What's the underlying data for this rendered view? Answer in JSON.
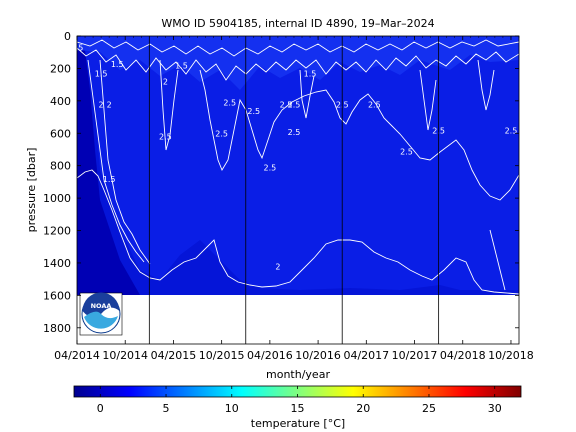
{
  "chart_data": {
    "type": "heatmap",
    "title": "WMO ID 5904185, internal ID 4890, 19–Mar–2024",
    "xlabel": "month/year",
    "ylabel": "pressure [dbar]",
    "colorbar_label": "temperature [°C]",
    "x_tick_labels": [
      "04/2014",
      "10/2014",
      "04/2015",
      "10/2015",
      "04/2016",
      "10/2016",
      "04/2017",
      "10/2017",
      "04/2018",
      "10/2018"
    ],
    "x_range": [
      "2014-04",
      "2018-11"
    ],
    "y_ticks": [
      0,
      200,
      400,
      600,
      800,
      1000,
      1200,
      1400,
      1600,
      1800
    ],
    "y_range": [
      0,
      1900
    ],
    "y_reversed": true,
    "colorbar_ticks": [
      0,
      5,
      10,
      15,
      20,
      25,
      30
    ],
    "colorbar_range": [
      -2,
      32
    ],
    "colormap": "jet",
    "grid": false,
    "data_max_pressure": 1580,
    "year_markers": [
      "2015-01",
      "2016-01",
      "2017-01",
      "2018-01"
    ],
    "contour_labels": [
      {
        "value": "1.5",
        "x": "2014-07",
        "y": 250
      },
      {
        "value": "2",
        "x": "2014-07",
        "y": 440
      },
      {
        "value": "2",
        "x": "2014-08",
        "y": 440
      },
      {
        "value": "1.5",
        "x": "2014-08",
        "y": 900
      },
      {
        "value": "1.5",
        "x": "2014-09",
        "y": 190
      },
      {
        "value": "2.5",
        "x": "2014-04",
        "y": 90
      },
      {
        "value": "2",
        "x": "2015-03",
        "y": 300
      },
      {
        "value": "1.5",
        "x": "2015-05",
        "y": 200
      },
      {
        "value": "2.5",
        "x": "2015-03",
        "y": 640
      },
      {
        "value": "2.5",
        "x": "2015-10",
        "y": 620
      },
      {
        "value": "2.5",
        "x": "2015-11",
        "y": 430
      },
      {
        "value": "2.5",
        "x": "2016-02",
        "y": 480
      },
      {
        "value": "2.5",
        "x": "2016-04",
        "y": 830
      },
      {
        "value": "2.5",
        "x": "2016-06",
        "y": 440
      },
      {
        "value": "2.5",
        "x": "2016-07",
        "y": 440
      },
      {
        "value": "2.5",
        "x": "2016-07",
        "y": 610
      },
      {
        "value": "1.5",
        "x": "2016-09",
        "y": 250
      },
      {
        "value": "2.5",
        "x": "2017-01",
        "y": 440
      },
      {
        "value": "2.5",
        "x": "2017-05",
        "y": 440
      },
      {
        "value": "2.5",
        "x": "2017-09",
        "y": 730
      },
      {
        "value": "2.5",
        "x": "2018-01",
        "y": 600
      },
      {
        "value": "2.5",
        "x": "2018-10",
        "y": 600
      },
      {
        "value": "2",
        "x": "2016-05",
        "y": 1440
      }
    ]
  },
  "logo": {
    "text": "NOAA"
  },
  "colors": {
    "deep_blue": "#0000b4",
    "mid_blue": "#0a1ee6",
    "contour": "#ffffff",
    "frame": "#000000"
  }
}
